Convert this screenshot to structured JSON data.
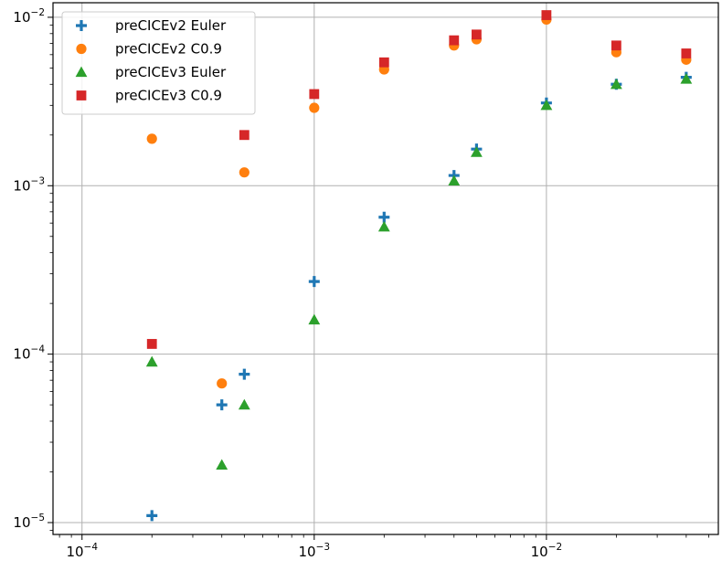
{
  "chart_data": {
    "type": "scatter",
    "title": "",
    "xlabel": "",
    "ylabel": "",
    "xscale": "log",
    "yscale": "log",
    "xlim": [
      7.5e-05,
      0.055
    ],
    "ylim": [
      8.5e-06,
      0.0122
    ],
    "grid": true,
    "legend_position": "top-left",
    "x_ticks": [
      {
        "value": 0.0001,
        "base": "10",
        "exp": "−4"
      },
      {
        "value": 0.001,
        "base": "10",
        "exp": "−3"
      },
      {
        "value": 0.01,
        "base": "10",
        "exp": "−2"
      }
    ],
    "y_ticks": [
      {
        "value": 1e-05,
        "base": "10",
        "exp": "−5"
      },
      {
        "value": 0.0001,
        "base": "10",
        "exp": "−4"
      },
      {
        "value": 0.001,
        "base": "10",
        "exp": "−3"
      },
      {
        "value": 0.01,
        "base": "10",
        "exp": "−2"
      }
    ],
    "series": [
      {
        "name": "preCICEv2 Euler",
        "marker": "plus",
        "color": "#1f77b4",
        "points": [
          [
            0.0002,
            1.1e-05
          ],
          [
            0.0004,
            5e-05
          ],
          [
            0.0005,
            7.6e-05
          ],
          [
            0.001,
            0.00027
          ],
          [
            0.002,
            0.00065
          ],
          [
            0.004,
            0.00115
          ],
          [
            0.005,
            0.00165
          ],
          [
            0.01,
            0.0031
          ],
          [
            0.02,
            0.004
          ],
          [
            0.04,
            0.0044
          ]
        ]
      },
      {
        "name": "preCICEv2 C0.9",
        "marker": "circle",
        "color": "#ff7f0e",
        "points": [
          [
            0.0002,
            0.0019
          ],
          [
            0.0004,
            6.7e-05
          ],
          [
            0.0005,
            0.0012
          ],
          [
            0.001,
            0.0029
          ],
          [
            0.002,
            0.0049
          ],
          [
            0.004,
            0.0068
          ],
          [
            0.005,
            0.0074
          ],
          [
            0.01,
            0.0097
          ],
          [
            0.02,
            0.0062
          ],
          [
            0.04,
            0.0056
          ]
        ]
      },
      {
        "name": "preCICEv3 Euler",
        "marker": "triangle",
        "color": "#2ca02c",
        "points": [
          [
            0.0002,
            9e-05
          ],
          [
            0.0004,
            2.2e-05
          ],
          [
            0.0005,
            5e-05
          ],
          [
            0.001,
            0.00016
          ],
          [
            0.002,
            0.00057
          ],
          [
            0.004,
            0.00107
          ],
          [
            0.005,
            0.00158
          ],
          [
            0.01,
            0.003
          ],
          [
            0.02,
            0.004
          ],
          [
            0.04,
            0.0043
          ]
        ]
      },
      {
        "name": "preCICEv3 C0.9",
        "marker": "square",
        "color": "#d62728",
        "points": [
          [
            0.0002,
            0.000115
          ],
          [
            0.0005,
            0.002
          ],
          [
            0.001,
            0.0035
          ],
          [
            0.002,
            0.0054
          ],
          [
            0.004,
            0.0073
          ],
          [
            0.005,
            0.0079
          ],
          [
            0.01,
            0.0103
          ],
          [
            0.02,
            0.0068
          ],
          [
            0.04,
            0.0061
          ]
        ]
      }
    ]
  }
}
